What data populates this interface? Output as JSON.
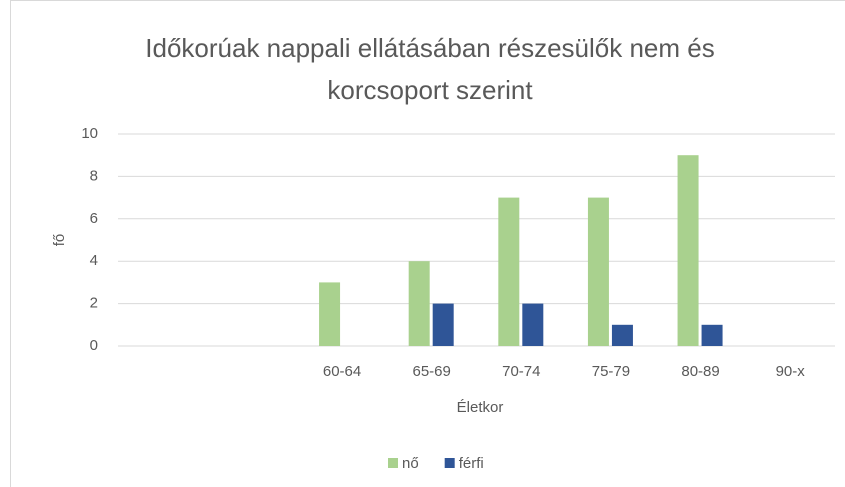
{
  "chart_data": {
    "type": "bar",
    "title": [
      "Időkorúak nappali ellátásában részesülők nem és",
      "korcsoport szerint"
    ],
    "x_label": "Életkor",
    "y_label": "fő",
    "categories": [
      null,
      null,
      "60-64",
      "65-69",
      "70-74",
      "75-79",
      "80-89",
      "90-x"
    ],
    "series": [
      {
        "name": "nő",
        "color": "#a9d18e",
        "values": [
          null,
          null,
          3,
          4,
          7,
          7,
          9,
          null
        ]
      },
      {
        "name": "férfi",
        "color": "#2f5597",
        "values": [
          null,
          null,
          null,
          2,
          2,
          1,
          1,
          null
        ]
      }
    ],
    "ylim": [
      0,
      10
    ],
    "yticks": [
      0,
      2,
      4,
      6,
      8,
      10
    ],
    "grid": true,
    "legend": "bottom"
  }
}
